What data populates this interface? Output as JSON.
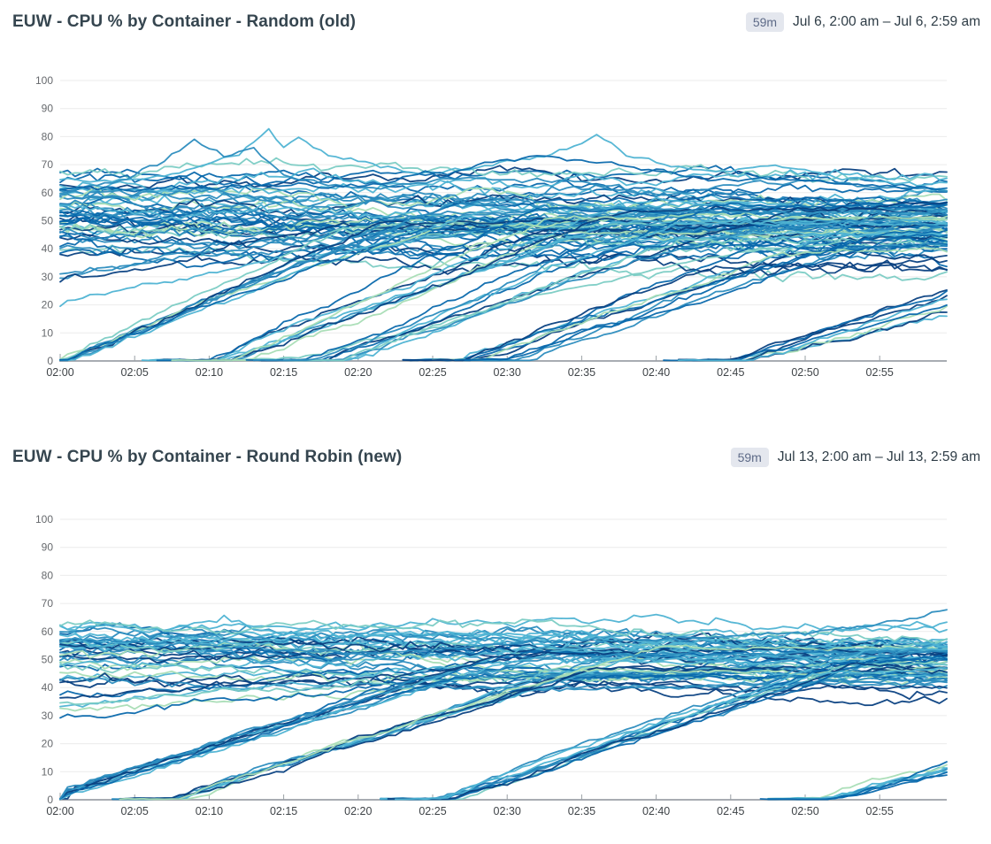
{
  "page": {
    "background": "#ffffff",
    "title_color": "#35454f"
  },
  "chart_data": [
    {
      "type": "line",
      "title": "EUW - CPU % by Container - Random (old)",
      "duration_badge": "59m",
      "time_range_label": "Jul 6, 2:00 am – Jul 6, 2:59 am",
      "description": "Roughly 95 overlapping CPU%-per-container time series. A wide noisy band sits between ~30% and ~70%; staggered groups of new containers ramp up from 0% and join the band. With random scheduling the ramps are loosely spread, the band is wide, and one container spikes to 84% around 02:16 and ~80% around 02:37.",
      "legend": "none",
      "grid": "horizontal",
      "x_axis": {
        "start": "02:00",
        "end": "02:59",
        "window_min": 59.5,
        "tick_interval_min": 5,
        "tick_labels": [
          "02:00",
          "02:05",
          "02:10",
          "02:15",
          "02:20",
          "02:25",
          "02:30",
          "02:35",
          "02:40",
          "02:45",
          "02:50",
          "02:55"
        ]
      },
      "y_axis": {
        "unit": "CPU %",
        "min": 0,
        "max": 100,
        "tick_step": 10,
        "tick_values": [
          0,
          10,
          20,
          30,
          40,
          50,
          60,
          70,
          80,
          90,
          100
        ]
      },
      "style": {
        "palette": [
          "#084081",
          "#0868ac",
          "#2b8cbe",
          "#4eb3d3",
          "#7bccc4",
          "#a8ddb5"
        ],
        "palette_weights": [
          0.2,
          0.2,
          0.22,
          0.16,
          0.08,
          0.14
        ],
        "grid_color": "#ebebeb",
        "axis_color": "#a8acb2",
        "tick_color": "#9aa0a5",
        "x_label_color": "#3e4347",
        "y_label_color": "#66696d",
        "stroke_width": 1.8
      },
      "seed": 7,
      "series_groups": [
        {
          "kind": "band",
          "label": "steady-band-top",
          "count": 5,
          "level_range": [
            62,
            68
          ],
          "drift_range": [
            -7,
            -2
          ],
          "noise": 2.2
        },
        {
          "kind": "band",
          "label": "steady-band",
          "count": 40,
          "level_range": [
            37,
            63
          ],
          "drift_range": [
            -8,
            1
          ],
          "noise": 2.5
        },
        {
          "kind": "ramp",
          "label": "left-risers",
          "count": 4,
          "start_min_range": [
            0,
            0
          ],
          "start_value_range": [
            14,
            31
          ],
          "slope_range": [
            0.55,
            1.1
          ],
          "cap_range": [
            40,
            56
          ],
          "noise": 1.6,
          "palette_weights": [
            0.3,
            0.3,
            0.25,
            0.15,
            0,
            0
          ]
        },
        {
          "kind": "ramp",
          "label": "ramp-at-02:00",
          "count": 9,
          "start_min_range": [
            0,
            1.5
          ],
          "start_value_range": [
            0,
            2
          ],
          "slope_range": [
            1.9,
            2.6
          ],
          "cap_range": [
            44,
            62
          ],
          "noise": 1.3
        },
        {
          "kind": "ramp",
          "label": "ramp-at-02:10",
          "count": 9,
          "start_min_range": [
            9,
            12.5
          ],
          "slope_range": [
            1.8,
            2.5
          ],
          "cap_range": [
            42,
            58
          ],
          "noise": 1.3
        },
        {
          "kind": "ramp",
          "label": "ramp-at-02:17",
          "count": 8,
          "start_min_range": [
            15.5,
            19.5
          ],
          "slope_range": [
            1.7,
            2.4
          ],
          "cap_range": [
            40,
            56
          ],
          "noise": 1.3
        },
        {
          "kind": "ramp",
          "label": "ramp-at-02:28",
          "count": 10,
          "start_min_range": [
            26,
            31
          ],
          "slope_range": [
            1.6,
            2.2
          ],
          "cap_range": [
            36,
            52
          ],
          "noise": 1.3
        },
        {
          "kind": "ramp",
          "label": "ramp-at-02:45",
          "count": 8,
          "start_min_range": [
            43.5,
            47
          ],
          "slope_range": [
            1.2,
            1.8
          ],
          "cap_range": [
            30,
            40
          ],
          "noise": 1.2
        }
      ],
      "outlier_series": [
        {
          "label": "spike-to-84",
          "color": "#4eb3d3",
          "noise": 1.2,
          "points": [
            [
              0,
              64
            ],
            [
              5,
              66
            ],
            [
              9,
              70
            ],
            [
              12,
              76
            ],
            [
              14,
              84
            ],
            [
              15,
              78
            ],
            [
              16,
              81
            ],
            [
              18,
              74
            ],
            [
              21,
              70
            ],
            [
              24,
              67
            ],
            [
              27,
              69
            ],
            [
              31,
              72
            ],
            [
              34,
              76
            ],
            [
              36,
              81
            ],
            [
              38,
              73
            ],
            [
              41,
              69
            ],
            [
              44,
              67
            ],
            [
              48,
              69
            ],
            [
              52,
              66
            ],
            [
              56,
              64
            ],
            [
              59.5,
              63
            ]
          ]
        },
        {
          "label": "spike-to-79",
          "color": "#2b8cbe",
          "noise": 1.3,
          "points": [
            [
              0,
              60
            ],
            [
              4,
              66
            ],
            [
              7,
              72
            ],
            [
              9,
              79
            ],
            [
              11,
              73
            ],
            [
              13,
              76
            ],
            [
              15,
              68
            ],
            [
              18,
              64
            ],
            [
              24,
              63
            ],
            [
              32,
              66
            ],
            [
              40,
              62
            ],
            [
              50,
              63
            ],
            [
              59.5,
              61
            ]
          ]
        },
        {
          "label": "navy-bump-74",
          "color": "#0868ac",
          "noise": 1.4,
          "points": [
            [
              0,
              62
            ],
            [
              10,
              63
            ],
            [
              20,
              64
            ],
            [
              28,
              70
            ],
            [
              33,
              74
            ],
            [
              36,
              72
            ],
            [
              40,
              70
            ],
            [
              45,
              66
            ],
            [
              52,
              64
            ],
            [
              59.5,
              63
            ]
          ]
        },
        {
          "label": "slow-teal-ramp",
          "color": "#7bccc4",
          "noise": 0.8,
          "points": [
            [
              16,
              0.3
            ],
            [
              20,
              6
            ],
            [
              25,
              12
            ],
            [
              30,
              21
            ],
            [
              35,
              28
            ],
            [
              40,
              33
            ],
            [
              45,
              38
            ],
            [
              50,
              42
            ],
            [
              55,
              46
            ],
            [
              59.5,
              49
            ]
          ]
        }
      ]
    },
    {
      "type": "line",
      "title": "EUW - CPU % by Container - Round Robin (new)",
      "duration_badge": "59m",
      "time_range_label": "Jul 13, 2:00 am – Jul 13, 2:59 am",
      "description": "Roughly 80 overlapping CPU%-per-container time series. With round-robin scheduling the steady band is tighter (~40-65%), and new-container ramps rise in tight synchronized bundles starting at 02:00, ~02:08, ~02:26 and ~02:51. Peak is ~67% at the right edge; no high outlier spikes.",
      "legend": "none",
      "grid": "horizontal",
      "x_axis": {
        "start": "02:00",
        "end": "02:59",
        "window_min": 59.5,
        "tick_interval_min": 5,
        "tick_labels": [
          "02:00",
          "02:05",
          "02:10",
          "02:15",
          "02:20",
          "02:25",
          "02:30",
          "02:35",
          "02:40",
          "02:45",
          "02:50",
          "02:55"
        ]
      },
      "y_axis": {
        "unit": "CPU %",
        "min": 0,
        "max": 100,
        "tick_step": 10,
        "tick_values": [
          0,
          10,
          20,
          30,
          40,
          50,
          60,
          70,
          80,
          90,
          100
        ]
      },
      "style": {
        "palette": [
          "#084081",
          "#0868ac",
          "#2b8cbe",
          "#4eb3d3",
          "#7bccc4",
          "#a8ddb5"
        ],
        "palette_weights": [
          0.2,
          0.2,
          0.22,
          0.16,
          0.08,
          0.14
        ],
        "grid_color": "#ebebeb",
        "axis_color": "#a8acb2",
        "tick_color": "#9aa0a5",
        "x_label_color": "#3e4347",
        "y_label_color": "#66696d",
        "stroke_width": 1.8
      },
      "seed": 21,
      "series_groups": [
        {
          "kind": "band",
          "label": "steady-band",
          "count": 30,
          "level_range": [
            42,
            60
          ],
          "drift_range": [
            -6,
            0
          ],
          "noise": 2.2
        },
        {
          "kind": "band",
          "label": "band-top-greens",
          "count": 6,
          "level_range": [
            57,
            63
          ],
          "drift_range": [
            -3,
            1
          ],
          "noise": 2.0,
          "palette_weights": [
            0.08,
            0.1,
            0.12,
            0.2,
            0.2,
            0.3
          ]
        },
        {
          "kind": "ramp",
          "label": "left-risers",
          "count": 6,
          "start_min_range": [
            0,
            0
          ],
          "start_value_range": [
            27,
            38
          ],
          "slope_range": [
            0.3,
            0.55
          ],
          "cap_range": [
            42,
            54
          ],
          "noise": 1.7
        },
        {
          "kind": "ramp",
          "label": "ramp-at-02:00",
          "count": 10,
          "start_min_range": [
            0,
            0.6
          ],
          "start_value_range": [
            1.5,
            3.5
          ],
          "slope_range": [
            1.55,
            1.75
          ],
          "cap_range": [
            40,
            54
          ],
          "noise": 1.1
        },
        {
          "kind": "ramp",
          "label": "ramp-at-02:08",
          "count": 10,
          "start_min_range": [
            7.2,
            8.4
          ],
          "slope_range": [
            1.65,
            1.85
          ],
          "cap_range": [
            42,
            55
          ],
          "noise": 1.1
        },
        {
          "kind": "ramp",
          "label": "ramp-at-02:26",
          "count": 10,
          "start_min_range": [
            25.2,
            26.4
          ],
          "slope_range": [
            1.7,
            1.95
          ],
          "cap_range": [
            42,
            56
          ],
          "noise": 1.1
        },
        {
          "kind": "ramp",
          "label": "ramp-at-02:51",
          "count": 8,
          "start_min_range": [
            50.4,
            52
          ],
          "slope_range": [
            1.1,
            1.5
          ],
          "cap_range": [
            30,
            40
          ],
          "noise": 1.0
        }
      ],
      "outlier_series": [
        {
          "label": "end-riser-67",
          "color": "#2b8cbe",
          "noise": 1.1,
          "points": [
            [
              0,
              56
            ],
            [
              10,
              57
            ],
            [
              20,
              55
            ],
            [
              30,
              56
            ],
            [
              40,
              57
            ],
            [
              46,
              57
            ],
            [
              50,
              59
            ],
            [
              54,
              62
            ],
            [
              57,
              64
            ],
            [
              59.5,
              67
            ]
          ]
        }
      ]
    }
  ]
}
